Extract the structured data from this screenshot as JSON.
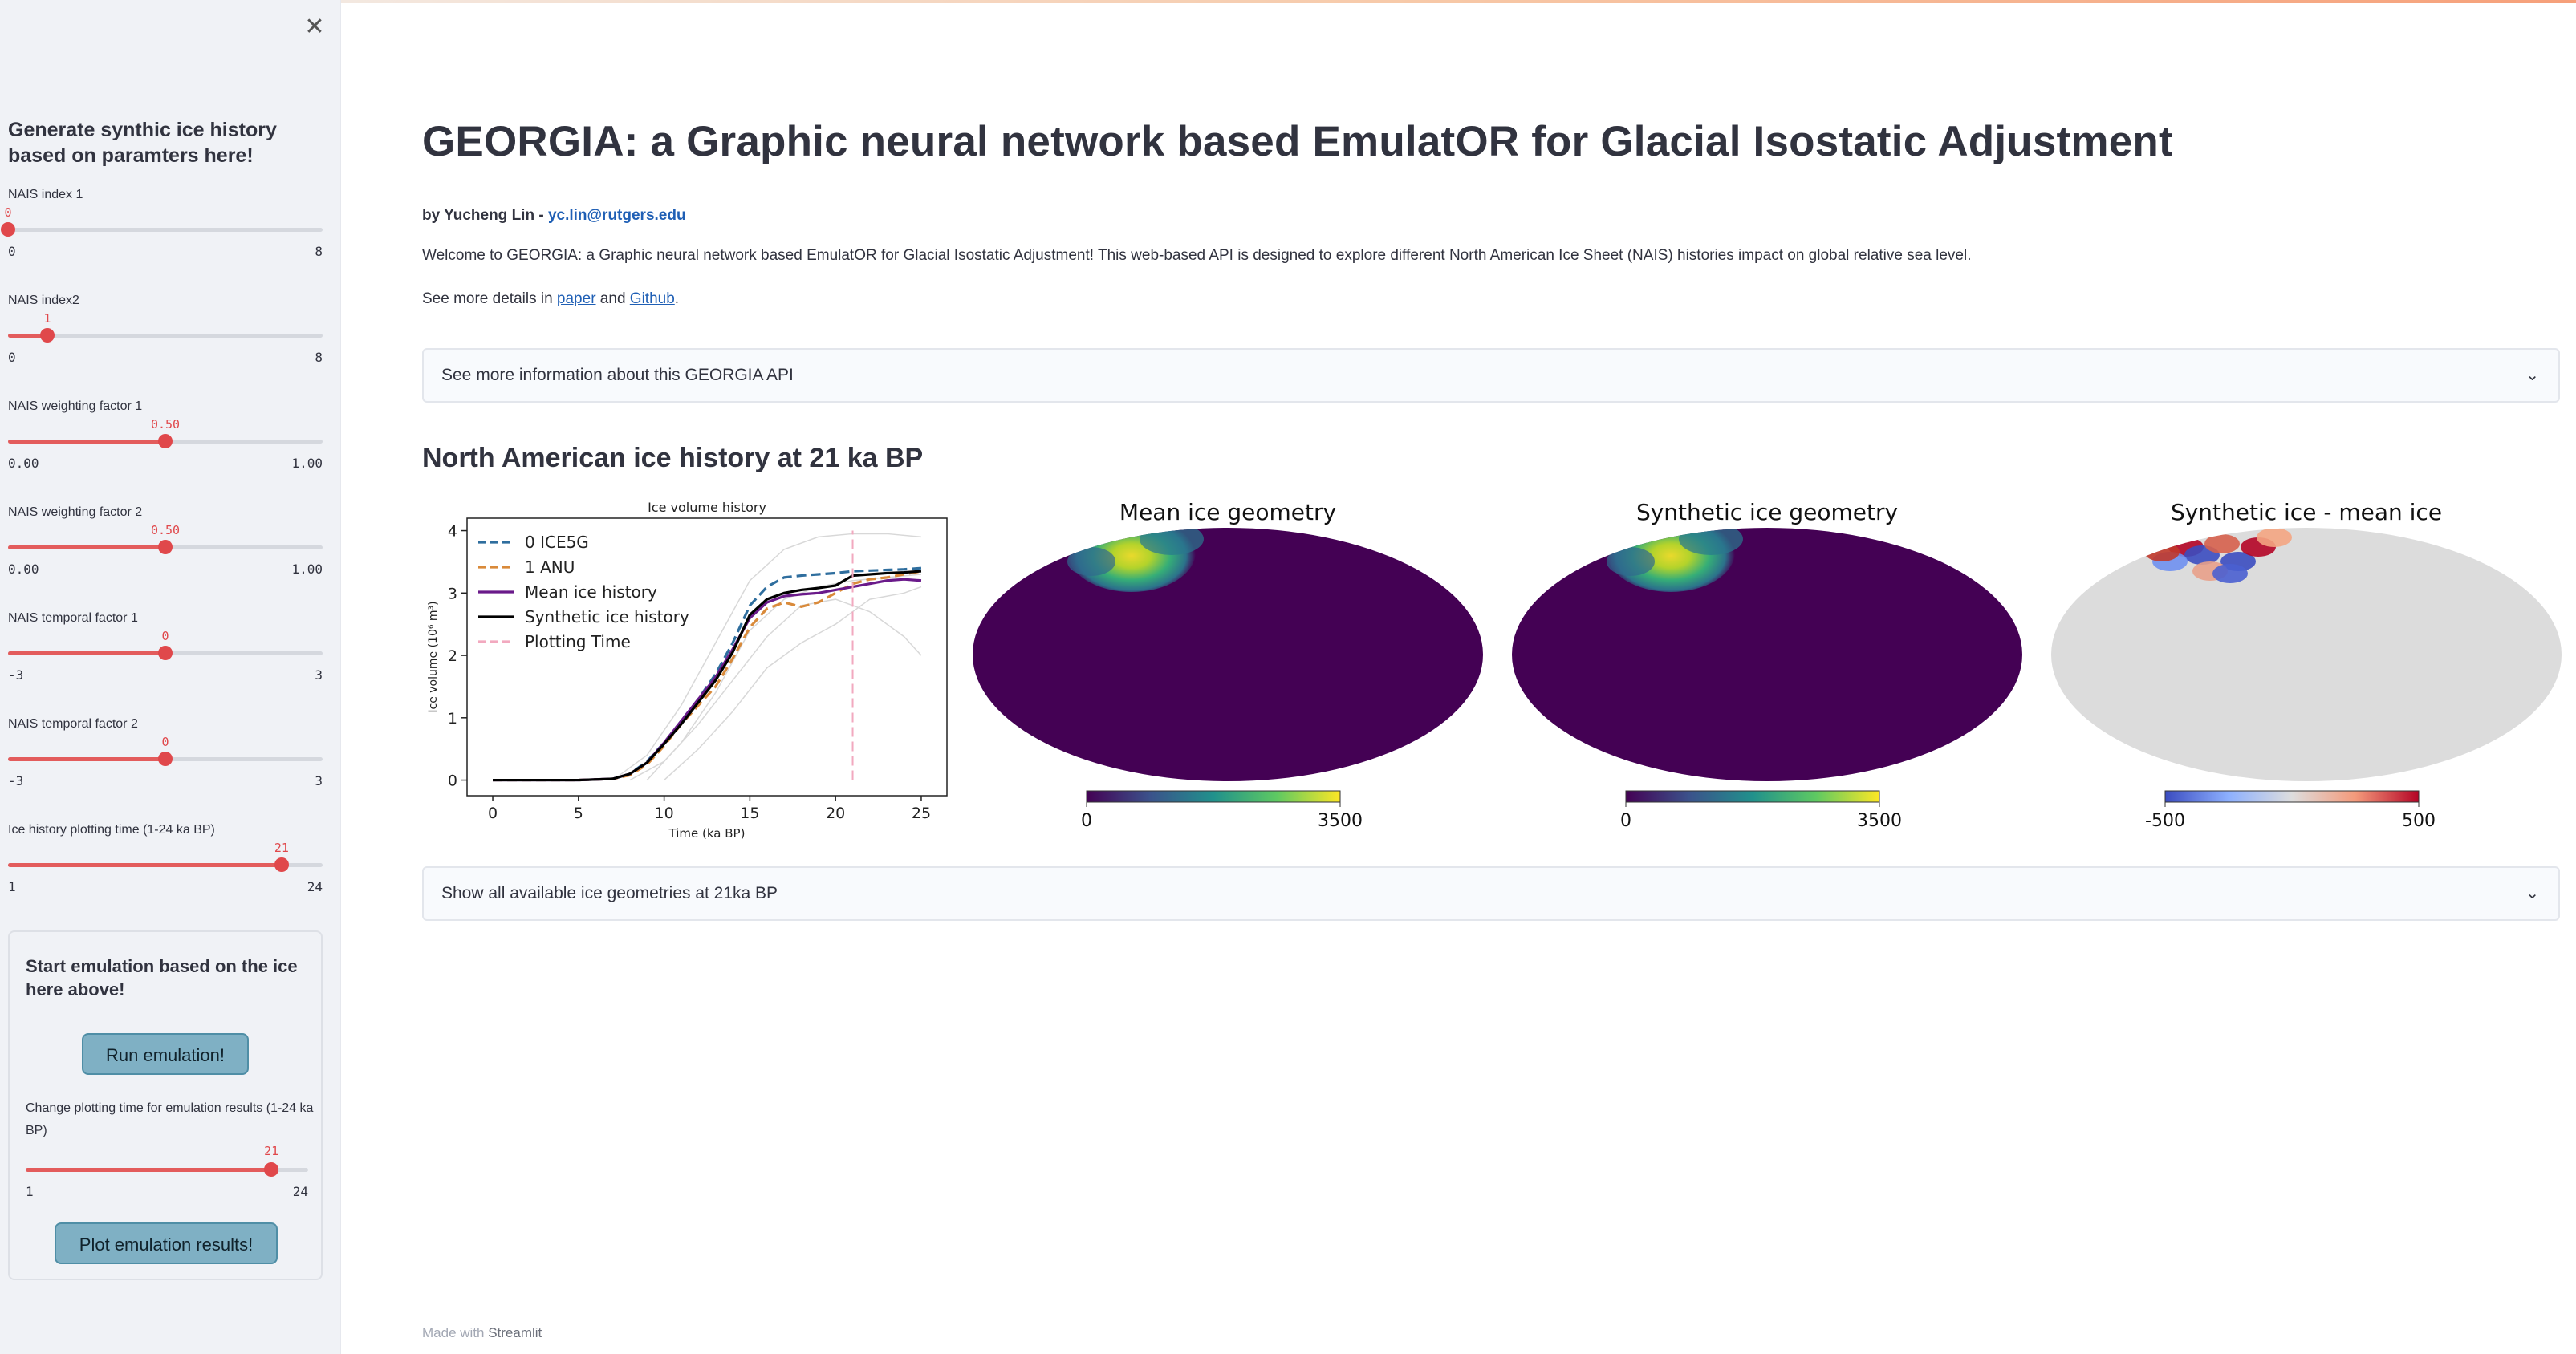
{
  "sidebar": {
    "close_icon": "close-icon",
    "title": "Generate synthic ice history based on paramters here!",
    "sliders": [
      {
        "label": "NAIS index 1",
        "value": "0",
        "min": "0",
        "max": "8",
        "fraction": 0.0
      },
      {
        "label": "NAIS index2",
        "value": "1",
        "min": "0",
        "max": "8",
        "fraction": 0.125
      },
      {
        "label": "NAIS weighting factor 1",
        "value": "0.50",
        "min": "0.00",
        "max": "1.00",
        "fraction": 0.5
      },
      {
        "label": "NAIS weighting factor 2",
        "value": "0.50",
        "min": "0.00",
        "max": "1.00",
        "fraction": 0.5
      },
      {
        "label": "NAIS temporal factor 1",
        "value": "0",
        "min": "-3",
        "max": "3",
        "fraction": 0.5
      },
      {
        "label": "NAIS temporal factor 2",
        "value": "0",
        "min": "-3",
        "max": "3",
        "fraction": 0.5
      },
      {
        "label": "Ice history plotting time (1-24 ka BP)",
        "value": "21",
        "min": "1",
        "max": "24",
        "fraction": 0.8696
      }
    ],
    "emulation": {
      "title": "Start emulation based on the ice here above!",
      "run_button": "Run emulation!",
      "change_label": "Change plotting time for emulation results (1-24 ka BP)",
      "slider": {
        "value": "21",
        "min": "1",
        "max": "24",
        "fraction": 0.8696
      },
      "plot_button": "Plot emulation results!"
    }
  },
  "main": {
    "title": "GEORGIA: a Graphic neural network based EmulatOR for Glacial Isostatic Adjustment",
    "byline_prefix": "by Yucheng Lin - ",
    "byline_email": "yc.lin@rutgers.edu",
    "welcome": "Welcome to GEORGIA: a Graphic neural network based EmulatOR for Glacial Isostatic Adjustment! This web-based API is designed to explore different North American Ice Sheet (NAIS) histories impact on global relative sea level.",
    "details_prefix": "See more details in ",
    "details_link1": "paper",
    "details_mid": " and ",
    "details_link2": "Github",
    "details_suffix": ".",
    "expander1": "See more information about this GEORGIA API",
    "section_heading": "North American ice history at 21 ka BP",
    "expander2": "Show all available ice geometries at 21ka BP",
    "chevron_icon": "chevron-down-icon",
    "footer_prefix": "Made with ",
    "footer_brand": "Streamlit"
  },
  "chart_data": [
    {
      "type": "line",
      "title": "Ice volume history",
      "xlabel": "Time (ka BP)",
      "ylabel": "Ice volume (10⁶ m³)",
      "xlim": [
        -1.5,
        26.5
      ],
      "ylim": [
        -0.25,
        4.2
      ],
      "xticks": [
        "0",
        "5",
        "10",
        "15",
        "20",
        "25"
      ],
      "yticks": [
        "0",
        "1",
        "2",
        "3",
        "4"
      ],
      "legend_position": "top-left",
      "plotting_time": 21,
      "series": [
        {
          "name": "0 ICE5G",
          "color": "#2f6e9e",
          "dash": "dashed",
          "x": [
            0,
            5,
            7,
            8,
            9,
            10,
            11,
            12,
            13,
            14,
            15,
            16,
            17,
            18,
            19,
            20,
            21,
            22,
            23,
            24,
            25
          ],
          "y": [
            0,
            0,
            0.02,
            0.1,
            0.3,
            0.6,
            0.95,
            1.3,
            1.7,
            2.2,
            2.8,
            3.1,
            3.25,
            3.28,
            3.3,
            3.32,
            3.35,
            3.36,
            3.37,
            3.38,
            3.4
          ]
        },
        {
          "name": "1 ANU",
          "color": "#d98a3a",
          "dash": "dashed",
          "x": [
            0,
            5,
            7,
            8,
            9,
            10,
            11,
            12,
            13,
            14,
            15,
            16,
            17,
            18,
            19,
            20,
            21,
            22,
            23,
            24,
            25
          ],
          "y": [
            0,
            0,
            0.02,
            0.08,
            0.25,
            0.55,
            0.9,
            1.2,
            1.5,
            1.95,
            2.45,
            2.75,
            2.85,
            2.78,
            2.85,
            3.0,
            3.15,
            3.22,
            3.25,
            3.3,
            3.35
          ]
        },
        {
          "name": "Mean ice history",
          "color": "#6a1a8a",
          "dash": "solid",
          "x": [
            0,
            5,
            7,
            8,
            9,
            10,
            11,
            12,
            13,
            14,
            15,
            16,
            17,
            18,
            19,
            20,
            21,
            22,
            23,
            24,
            25
          ],
          "y": [
            0,
            0,
            0.02,
            0.1,
            0.28,
            0.6,
            0.95,
            1.3,
            1.65,
            2.1,
            2.6,
            2.85,
            2.95,
            2.98,
            3.0,
            3.05,
            3.1,
            3.15,
            3.2,
            3.22,
            3.2
          ]
        },
        {
          "name": "Synthetic ice history",
          "color": "#000000",
          "dash": "solid",
          "x": [
            0,
            5,
            7,
            8,
            9,
            10,
            11,
            12,
            13,
            14,
            15,
            16,
            17,
            18,
            19,
            20,
            21,
            22,
            23,
            24,
            25
          ],
          "y": [
            0,
            0,
            0.02,
            0.1,
            0.28,
            0.58,
            0.9,
            1.25,
            1.6,
            2.05,
            2.65,
            2.9,
            3.0,
            3.05,
            3.08,
            3.12,
            3.28,
            3.3,
            3.32,
            3.33,
            3.35
          ]
        },
        {
          "name": "Plotting Time",
          "color": "#f2a9bf",
          "dash": "dashed",
          "x": [
            21,
            21
          ],
          "y": [
            0,
            4.0
          ]
        }
      ],
      "background_series": [
        {
          "x": [
            7,
            9,
            11,
            13,
            15,
            17,
            19,
            21,
            23,
            25
          ],
          "y": [
            0,
            0.4,
            1.2,
            2.2,
            3.2,
            3.7,
            3.9,
            3.95,
            3.95,
            3.9
          ]
        },
        {
          "x": [
            8,
            10,
            12,
            14,
            16,
            18,
            20,
            22,
            24,
            25
          ],
          "y": [
            0,
            0.3,
            0.9,
            1.6,
            2.3,
            2.8,
            2.9,
            2.7,
            2.3,
            2.0
          ]
        },
        {
          "x": [
            9,
            11,
            13,
            15,
            17,
            19,
            21,
            23,
            25
          ],
          "y": [
            0,
            0.6,
            1.4,
            2.4,
            2.9,
            3.1,
            3.2,
            3.25,
            3.3
          ]
        },
        {
          "x": [
            10,
            12,
            14,
            16,
            18,
            20,
            22,
            24,
            25
          ],
          "y": [
            0,
            0.5,
            1.1,
            1.8,
            2.2,
            2.5,
            2.9,
            3.0,
            3.1
          ]
        }
      ]
    },
    {
      "type": "heatmap",
      "title": "Mean ice geometry",
      "colormap": "viridis",
      "background": "#440154",
      "colorbar": {
        "min": "0",
        "max": "3500"
      }
    },
    {
      "type": "heatmap",
      "title": "Synthetic ice geometry",
      "colormap": "viridis",
      "background": "#440154",
      "colorbar": {
        "min": "0",
        "max": "3500"
      }
    },
    {
      "type": "heatmap",
      "title": "Synthetic ice - mean ice",
      "colormap": "coolwarm",
      "background": "#dcdcdc",
      "colorbar": {
        "min": "-500",
        "max": "500"
      }
    }
  ]
}
